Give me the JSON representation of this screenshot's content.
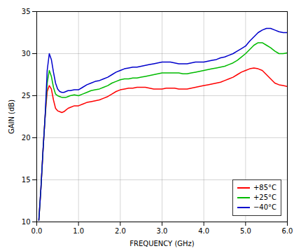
{
  "chart_data": {
    "type": "line",
    "xlabel": "FREQUENCY (GHz)",
    "ylabel": "GAIN (dB)",
    "xlim": [
      0,
      6
    ],
    "ylim": [
      10,
      35
    ],
    "xticks": [
      0,
      1,
      2,
      3,
      4,
      5,
      6
    ],
    "yticks": [
      10,
      15,
      20,
      25,
      30,
      35
    ],
    "grid": true,
    "legend": "lower right",
    "x": [
      0.05,
      0.1,
      0.15,
      0.2,
      0.25,
      0.3,
      0.35,
      0.4,
      0.45,
      0.5,
      0.55,
      0.6,
      0.65,
      0.7,
      0.75,
      0.8,
      0.9,
      1.0,
      1.1,
      1.2,
      1.3,
      1.4,
      1.5,
      1.6,
      1.7,
      1.8,
      1.9,
      2.0,
      2.1,
      2.2,
      2.3,
      2.4,
      2.5,
      2.6,
      2.7,
      2.8,
      2.9,
      3.0,
      3.1,
      3.2,
      3.3,
      3.4,
      3.5,
      3.6,
      3.7,
      3.8,
      3.9,
      4.0,
      4.1,
      4.2,
      4.3,
      4.4,
      4.5,
      4.6,
      4.7,
      4.8,
      4.9,
      5.0,
      5.1,
      5.2,
      5.3,
      5.4,
      5.5,
      5.6,
      5.7,
      5.8,
      5.9,
      6.0
    ],
    "series": [
      {
        "name": "+85°C",
        "color": "#ff0000",
        "values": [
          10.2,
          14.0,
          18.5,
          22.5,
          25.5,
          26.2,
          25.8,
          24.5,
          23.5,
          23.2,
          23.1,
          23.0,
          23.1,
          23.3,
          23.5,
          23.6,
          23.8,
          23.8,
          24.0,
          24.2,
          24.3,
          24.4,
          24.5,
          24.7,
          24.9,
          25.2,
          25.5,
          25.7,
          25.8,
          25.9,
          25.9,
          26.0,
          26.0,
          26.0,
          25.9,
          25.8,
          25.8,
          25.8,
          25.9,
          25.9,
          25.9,
          25.8,
          25.8,
          25.8,
          25.9,
          26.0,
          26.1,
          26.2,
          26.3,
          26.4,
          26.5,
          26.6,
          26.8,
          27.0,
          27.2,
          27.5,
          27.8,
          28.0,
          28.2,
          28.3,
          28.2,
          28.0,
          27.5,
          27.0,
          26.5,
          26.3,
          26.2,
          26.1
        ]
      },
      {
        "name": "+25°C",
        "color": "#00bb00",
        "values": [
          10.2,
          14.0,
          18.5,
          22.5,
          26.5,
          28.0,
          27.3,
          26.0,
          25.2,
          25.0,
          24.9,
          24.8,
          24.8,
          24.8,
          24.9,
          25.0,
          25.1,
          25.0,
          25.2,
          25.4,
          25.6,
          25.7,
          25.8,
          26.0,
          26.2,
          26.5,
          26.7,
          26.9,
          27.0,
          27.0,
          27.1,
          27.1,
          27.2,
          27.3,
          27.4,
          27.5,
          27.6,
          27.7,
          27.7,
          27.7,
          27.7,
          27.7,
          27.6,
          27.6,
          27.7,
          27.8,
          27.9,
          28.0,
          28.1,
          28.2,
          28.3,
          28.4,
          28.5,
          28.7,
          28.9,
          29.2,
          29.6,
          30.0,
          30.5,
          31.0,
          31.3,
          31.3,
          31.0,
          30.7,
          30.3,
          30.0,
          30.0,
          30.1
        ]
      },
      {
        "name": "−40°C",
        "color": "#0000cc",
        "values": [
          10.2,
          14.0,
          18.5,
          22.5,
          28.0,
          30.0,
          29.3,
          27.8,
          26.5,
          25.8,
          25.5,
          25.4,
          25.4,
          25.5,
          25.6,
          25.6,
          25.7,
          25.7,
          26.0,
          26.3,
          26.5,
          26.7,
          26.8,
          27.0,
          27.2,
          27.5,
          27.8,
          28.0,
          28.2,
          28.3,
          28.4,
          28.4,
          28.5,
          28.6,
          28.7,
          28.8,
          28.9,
          29.0,
          29.0,
          29.0,
          28.9,
          28.8,
          28.8,
          28.8,
          28.9,
          29.0,
          29.0,
          29.0,
          29.1,
          29.2,
          29.3,
          29.5,
          29.6,
          29.8,
          30.0,
          30.3,
          30.6,
          30.9,
          31.5,
          32.0,
          32.5,
          32.8,
          33.0,
          33.0,
          32.8,
          32.6,
          32.5,
          32.5
        ]
      }
    ]
  }
}
